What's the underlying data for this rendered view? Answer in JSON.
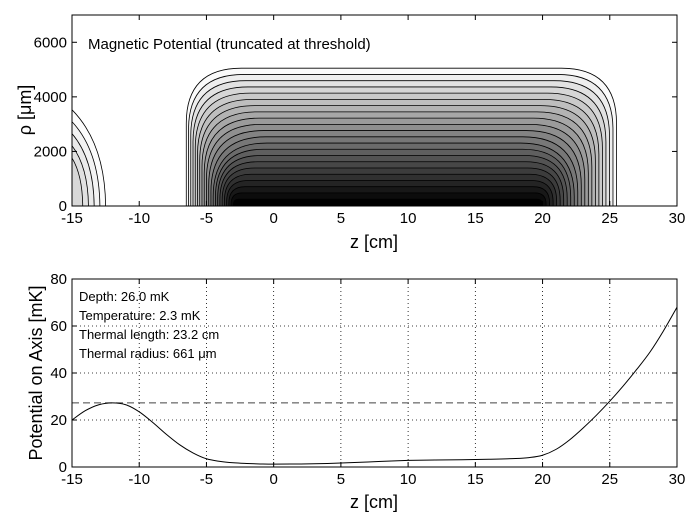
{
  "chart_data": [
    {
      "type": "contour",
      "title": "Magnetic Potential (truncated at threshold)",
      "xlabel": "z [cm]",
      "ylabel": "ρ [μm]",
      "xlim": [
        -15,
        30
      ],
      "ylim": [
        0,
        7000
      ],
      "xticks": [
        -15,
        -10,
        -5,
        0,
        5,
        10,
        15,
        20,
        25,
        30
      ],
      "yticks": [
        0,
        2000,
        4000,
        6000
      ],
      "grid": false,
      "colormap": "gray",
      "levels": 22,
      "region": {
        "z_left": -6.5,
        "z_right": 25.5,
        "rho_top": 5050,
        "deepest_center_z": 4
      },
      "edge_region": {
        "z_right": -12.5,
        "rho_top": 3600
      }
    },
    {
      "type": "line",
      "xlabel": "z [cm]",
      "ylabel": "Potential on Axis [mK]",
      "xlim": [
        -15,
        30
      ],
      "ylim": [
        0,
        80
      ],
      "xticks": [
        -15,
        -10,
        -5,
        0,
        5,
        10,
        15,
        20,
        25,
        30
      ],
      "yticks": [
        0,
        20,
        40,
        60,
        80
      ],
      "grid": true,
      "threshold": 27.3,
      "series": [
        {
          "x": [
            -15,
            -14,
            -13,
            -12,
            -11,
            -10,
            -9,
            -8,
            -7,
            -6,
            -5,
            -4,
            -3,
            -2,
            -1,
            0,
            2,
            4,
            6,
            8,
            10,
            12,
            14,
            16,
            18,
            19,
            20,
            21,
            22,
            23,
            24,
            25,
            26,
            27,
            28,
            29,
            30
          ],
          "y": [
            20,
            24,
            26.5,
            27.3,
            26.5,
            23.5,
            19,
            14,
            9.5,
            6,
            3.5,
            2.4,
            1.8,
            1.5,
            1.3,
            1.2,
            1.3,
            1.5,
            1.9,
            2.4,
            2.8,
            3.0,
            3.1,
            3.3,
            3.6,
            4.0,
            5.0,
            7.5,
            11.5,
            16.5,
            22,
            28,
            34.5,
            41.5,
            49,
            58,
            68
          ]
        }
      ],
      "annotations": [
        "Depth:  26.0 mK",
        "Temperature:  2.3 mK",
        "Thermal length:  23.2 cm",
        "Thermal radius:  661 μm"
      ]
    }
  ]
}
